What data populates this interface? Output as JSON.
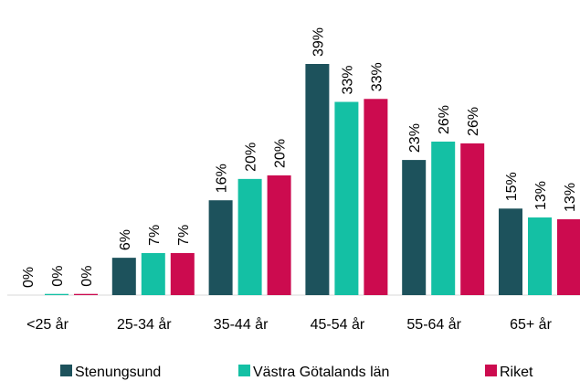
{
  "chart_data": {
    "type": "bar",
    "categories": [
      "<25 år",
      "25-34 år",
      "35-44 år",
      "45-54 år",
      "55-64 år",
      "65+ år"
    ],
    "series": [
      {
        "name": "Stenungsund",
        "color": "#1d525c",
        "values": [
          0,
          6.3,
          16.0,
          39,
          22.8,
          14.6
        ],
        "value_labels": [
          "0%",
          "6%",
          "16%",
          "39%",
          "23%",
          "15%"
        ]
      },
      {
        "name": "Västra Götalands län",
        "color": "#14c0a4",
        "values": [
          0.2,
          7.1,
          19.6,
          32.6,
          25.9,
          13.1
        ],
        "value_labels": [
          "0%",
          "7%",
          "20%",
          "33%",
          "26%",
          "13%"
        ]
      },
      {
        "name": "Riket",
        "color": "#cc0b4f",
        "values": [
          0.2,
          7.1,
          20.2,
          33.1,
          25.6,
          12.8
        ],
        "value_labels": [
          "0%",
          "7%",
          "20%",
          "33%",
          "26%",
          "13%"
        ]
      }
    ],
    "legend": "bottom"
  }
}
